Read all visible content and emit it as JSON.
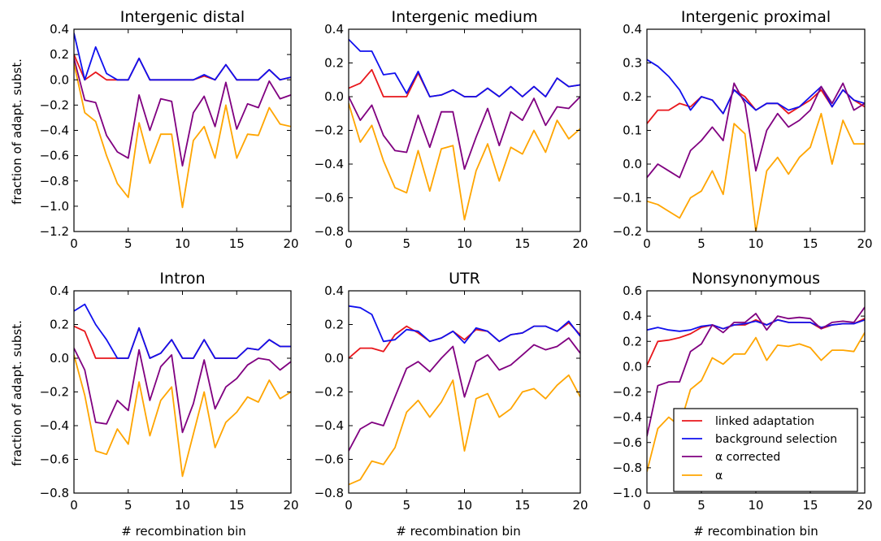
{
  "figure": {
    "ylabel": "fraction of adapt. subst.",
    "xlabel": "# recombination bin"
  },
  "legend": {
    "location": "lower-right of Nonsynonymous panel",
    "entries": [
      {
        "label": "linked adaptation",
        "color": "#e8161b"
      },
      {
        "label": "background selection",
        "color": "#1010ee"
      },
      {
        "label": "α corrected",
        "color": "#800080"
      },
      {
        "label": "α",
        "color": "#ffa500"
      }
    ]
  },
  "chart_data": [
    {
      "type": "line",
      "title": "Intergenic distal",
      "xlim": [
        0,
        20
      ],
      "ylim": [
        -1.2,
        0.4
      ],
      "xticks": [
        "0",
        "5",
        "10",
        "15",
        "20"
      ],
      "yticks": [
        "0.4",
        "0.2",
        "0.0",
        "−0.2",
        "−0.4",
        "−0.6",
        "−0.8",
        "−1.0",
        "−1.2"
      ],
      "x": [
        0,
        1,
        2,
        3,
        4,
        5,
        6,
        7,
        8,
        9,
        10,
        11,
        12,
        13,
        14,
        15,
        16,
        17,
        18,
        19,
        20
      ],
      "series": [
        {
          "name": "linked adaptation",
          "color": "#e8161b",
          "values": [
            0.2,
            0.0,
            0.06,
            0.0,
            0.0,
            0.0,
            0.17,
            0.0,
            0.0,
            0.0,
            0.0,
            0.0,
            0.03,
            0.0,
            0.12,
            0.0,
            0.0,
            0.0,
            0.08,
            0.0,
            0.02
          ]
        },
        {
          "name": "background selection",
          "color": "#1010ee",
          "values": [
            0.37,
            0.0,
            0.26,
            0.05,
            0.0,
            0.0,
            0.17,
            0.0,
            0.0,
            0.0,
            0.0,
            0.0,
            0.04,
            0.0,
            0.12,
            0.0,
            0.0,
            0.0,
            0.08,
            0.0,
            0.02
          ]
        },
        {
          "name": "α corrected",
          "color": "#800080",
          "values": [
            0.17,
            -0.16,
            -0.18,
            -0.44,
            -0.57,
            -0.62,
            -0.12,
            -0.4,
            -0.15,
            -0.17,
            -0.68,
            -0.26,
            -0.13,
            -0.37,
            -0.02,
            -0.39,
            -0.19,
            -0.22,
            -0.01,
            -0.15,
            -0.12
          ]
        },
        {
          "name": "α",
          "color": "#ffa500",
          "values": [
            0.13,
            -0.26,
            -0.33,
            -0.6,
            -0.82,
            -0.93,
            -0.34,
            -0.66,
            -0.43,
            -0.43,
            -1.01,
            -0.48,
            -0.37,
            -0.62,
            -0.2,
            -0.62,
            -0.43,
            -0.44,
            -0.22,
            -0.35,
            -0.37
          ]
        }
      ]
    },
    {
      "type": "line",
      "title": "Intergenic medium",
      "xlim": [
        0,
        20
      ],
      "ylim": [
        -0.8,
        0.4
      ],
      "xticks": [
        "0",
        "5",
        "10",
        "15",
        "20"
      ],
      "yticks": [
        "0.4",
        "0.2",
        "0.0",
        "−0.2",
        "−0.4",
        "−0.6",
        "−0.8"
      ],
      "x": [
        0,
        1,
        2,
        3,
        4,
        5,
        6,
        7,
        8,
        9,
        10,
        11,
        12,
        13,
        14,
        15,
        16,
        17,
        18,
        19,
        20
      ],
      "series": [
        {
          "name": "linked adaptation",
          "color": "#e8161b",
          "values": [
            0.05,
            0.08,
            0.16,
            0.0,
            0.0,
            0.0,
            0.14,
            0.0,
            0.01,
            0.04,
            0.0,
            0.0,
            0.05,
            0.0,
            0.06,
            0.0,
            0.06,
            0.0,
            0.11,
            0.06,
            0.07
          ]
        },
        {
          "name": "background selection",
          "color": "#1010ee",
          "values": [
            0.34,
            0.27,
            0.27,
            0.13,
            0.14,
            0.02,
            0.15,
            0.0,
            0.01,
            0.04,
            0.0,
            0.0,
            0.05,
            0.0,
            0.06,
            0.0,
            0.06,
            0.0,
            0.11,
            0.06,
            0.07
          ]
        },
        {
          "name": "α corrected",
          "color": "#800080",
          "values": [
            0.0,
            -0.14,
            -0.05,
            -0.23,
            -0.32,
            -0.33,
            -0.11,
            -0.3,
            -0.09,
            -0.09,
            -0.43,
            -0.24,
            -0.07,
            -0.29,
            -0.09,
            -0.14,
            -0.01,
            -0.17,
            -0.06,
            -0.07,
            0.0
          ]
        },
        {
          "name": "α",
          "color": "#ffa500",
          "values": [
            -0.04,
            -0.27,
            -0.17,
            -0.38,
            -0.54,
            -0.57,
            -0.32,
            -0.56,
            -0.31,
            -0.29,
            -0.73,
            -0.44,
            -0.28,
            -0.5,
            -0.3,
            -0.34,
            -0.2,
            -0.33,
            -0.14,
            -0.25,
            -0.19
          ]
        }
      ]
    },
    {
      "type": "line",
      "title": "Intergenic proximal",
      "xlim": [
        0,
        20
      ],
      "ylim": [
        -0.2,
        0.4
      ],
      "xticks": [
        "0",
        "5",
        "10",
        "15",
        "20"
      ],
      "yticks": [
        "0.4",
        "0.3",
        "0.2",
        "0.1",
        "0.0",
        "−0.1",
        "−0.2"
      ],
      "x": [
        0,
        1,
        2,
        3,
        4,
        5,
        6,
        7,
        8,
        9,
        10,
        11,
        12,
        13,
        14,
        15,
        16,
        17,
        18,
        19,
        20
      ],
      "series": [
        {
          "name": "linked adaptation",
          "color": "#e8161b",
          "values": [
            0.12,
            0.16,
            0.16,
            0.18,
            0.17,
            0.2,
            0.19,
            0.15,
            0.22,
            0.2,
            0.16,
            0.18,
            0.18,
            0.15,
            0.17,
            0.19,
            0.22,
            0.17,
            0.22,
            0.19,
            0.17
          ]
        },
        {
          "name": "background selection",
          "color": "#1010ee",
          "values": [
            0.31,
            0.29,
            0.26,
            0.22,
            0.16,
            0.2,
            0.19,
            0.15,
            0.22,
            0.19,
            0.16,
            0.18,
            0.18,
            0.16,
            0.17,
            0.2,
            0.23,
            0.17,
            0.22,
            0.19,
            0.18
          ]
        },
        {
          "name": "α corrected",
          "color": "#800080",
          "values": [
            -0.04,
            0.0,
            -0.02,
            -0.04,
            0.04,
            0.07,
            0.11,
            0.07,
            0.24,
            0.18,
            -0.02,
            0.1,
            0.15,
            0.11,
            0.13,
            0.16,
            0.23,
            0.18,
            0.24,
            0.16,
            0.18
          ]
        },
        {
          "name": "α",
          "color": "#ffa500",
          "values": [
            -0.11,
            -0.12,
            -0.14,
            -0.16,
            -0.1,
            -0.08,
            -0.02,
            -0.09,
            0.12,
            0.09,
            -0.2,
            -0.02,
            0.02,
            -0.03,
            0.02,
            0.05,
            0.15,
            0.0,
            0.13,
            0.06,
            0.06
          ]
        }
      ]
    },
    {
      "type": "line",
      "title": "Intron",
      "xlim": [
        0,
        20
      ],
      "ylim": [
        -0.8,
        0.4
      ],
      "xticks": [
        "0",
        "5",
        "10",
        "15",
        "20"
      ],
      "yticks": [
        "0.4",
        "0.2",
        "0.0",
        "−0.2",
        "−0.4",
        "−0.6",
        "−0.8"
      ],
      "x": [
        0,
        1,
        2,
        3,
        4,
        5,
        6,
        7,
        8,
        9,
        10,
        11,
        12,
        13,
        14,
        15,
        16,
        17,
        18,
        19,
        20
      ],
      "series": [
        {
          "name": "linked adaptation",
          "color": "#e8161b",
          "values": [
            0.19,
            0.16,
            0.0,
            0.0,
            0.0,
            0.0,
            0.18,
            0.0,
            0.03,
            0.11,
            0.0,
            0.0,
            0.11,
            0.0,
            0.0,
            0.0,
            0.06,
            0.05,
            0.11,
            0.07,
            0.07
          ]
        },
        {
          "name": "background selection",
          "color": "#1010ee",
          "values": [
            0.28,
            0.32,
            0.2,
            0.11,
            0.0,
            0.0,
            0.18,
            0.0,
            0.03,
            0.11,
            0.0,
            0.0,
            0.11,
            0.0,
            0.0,
            0.0,
            0.06,
            0.05,
            0.11,
            0.07,
            0.07
          ]
        },
        {
          "name": "α corrected",
          "color": "#800080",
          "values": [
            0.06,
            -0.07,
            -0.38,
            -0.39,
            -0.25,
            -0.31,
            0.05,
            -0.25,
            -0.05,
            0.02,
            -0.44,
            -0.27,
            -0.01,
            -0.3,
            -0.17,
            -0.12,
            -0.04,
            0.0,
            -0.01,
            -0.07,
            -0.02
          ]
        },
        {
          "name": "α",
          "color": "#ffa500",
          "values": [
            0.02,
            -0.22,
            -0.55,
            -0.57,
            -0.42,
            -0.51,
            -0.14,
            -0.46,
            -0.25,
            -0.17,
            -0.7,
            -0.45,
            -0.2,
            -0.53,
            -0.38,
            -0.32,
            -0.23,
            -0.26,
            -0.13,
            -0.24,
            -0.2
          ]
        }
      ]
    },
    {
      "type": "line",
      "title": "UTR",
      "xlim": [
        0,
        20
      ],
      "ylim": [
        -0.8,
        0.4
      ],
      "xticks": [
        "0",
        "5",
        "10",
        "15",
        "20"
      ],
      "yticks": [
        "0.4",
        "0.2",
        "0.0",
        "−0.2",
        "−0.4",
        "−0.6",
        "−0.8"
      ],
      "x": [
        0,
        1,
        2,
        3,
        4,
        5,
        6,
        7,
        8,
        9,
        10,
        11,
        12,
        13,
        14,
        15,
        16,
        17,
        18,
        19,
        20
      ],
      "series": [
        {
          "name": "linked adaptation",
          "color": "#e8161b",
          "values": [
            0.0,
            0.06,
            0.06,
            0.04,
            0.14,
            0.19,
            0.15,
            0.1,
            0.12,
            0.16,
            0.11,
            0.17,
            0.16,
            0.1,
            0.14,
            0.15,
            0.19,
            0.19,
            0.16,
            0.21,
            0.14
          ]
        },
        {
          "name": "background selection",
          "color": "#1010ee",
          "values": [
            0.31,
            0.3,
            0.26,
            0.1,
            0.11,
            0.17,
            0.16,
            0.1,
            0.12,
            0.16,
            0.09,
            0.18,
            0.16,
            0.1,
            0.14,
            0.15,
            0.19,
            0.19,
            0.16,
            0.22,
            0.13
          ]
        },
        {
          "name": "α corrected",
          "color": "#800080",
          "values": [
            -0.55,
            -0.42,
            -0.38,
            -0.4,
            -0.23,
            -0.06,
            -0.02,
            -0.08,
            0.0,
            0.07,
            -0.23,
            -0.02,
            0.02,
            -0.07,
            -0.04,
            0.02,
            0.08,
            0.05,
            0.07,
            0.12,
            0.03
          ]
        },
        {
          "name": "α",
          "color": "#ffa500",
          "values": [
            -0.75,
            -0.72,
            -0.61,
            -0.63,
            -0.53,
            -0.32,
            -0.25,
            -0.35,
            -0.26,
            -0.13,
            -0.55,
            -0.24,
            -0.21,
            -0.35,
            -0.3,
            -0.2,
            -0.18,
            -0.24,
            -0.16,
            -0.1,
            -0.23
          ]
        }
      ]
    },
    {
      "type": "line",
      "title": "Nonsynonymous",
      "xlim": [
        0,
        20
      ],
      "ylim": [
        -1.0,
        0.6
      ],
      "xticks": [
        "0",
        "5",
        "10",
        "15",
        "20"
      ],
      "yticks": [
        "0.6",
        "0.4",
        "0.2",
        "0.0",
        "−0.2",
        "−0.4",
        "−0.6",
        "−0.8",
        "−1.0"
      ],
      "x": [
        0,
        1,
        2,
        3,
        4,
        5,
        6,
        7,
        8,
        9,
        10,
        11,
        12,
        13,
        14,
        15,
        16,
        17,
        18,
        19,
        20
      ],
      "series": [
        {
          "name": "linked adaptation",
          "color": "#e8161b",
          "values": [
            0.01,
            0.2,
            0.21,
            0.23,
            0.26,
            0.31,
            0.33,
            0.3,
            0.33,
            0.33,
            0.37,
            0.33,
            0.37,
            0.35,
            0.35,
            0.35,
            0.3,
            0.33,
            0.34,
            0.34,
            0.38
          ]
        },
        {
          "name": "background selection",
          "color": "#1010ee",
          "values": [
            0.29,
            0.31,
            0.29,
            0.28,
            0.29,
            0.32,
            0.33,
            0.3,
            0.33,
            0.34,
            0.36,
            0.33,
            0.37,
            0.35,
            0.35,
            0.35,
            0.31,
            0.33,
            0.34,
            0.34,
            0.37
          ]
        },
        {
          "name": "α corrected",
          "color": "#800080",
          "values": [
            -0.55,
            -0.15,
            -0.12,
            -0.12,
            0.12,
            0.18,
            0.33,
            0.27,
            0.35,
            0.35,
            0.42,
            0.29,
            0.4,
            0.38,
            0.39,
            0.38,
            0.3,
            0.35,
            0.36,
            0.35,
            0.47
          ]
        },
        {
          "name": "α",
          "color": "#ffa500",
          "values": [
            -0.83,
            -0.49,
            -0.4,
            -0.47,
            -0.18,
            -0.11,
            0.07,
            0.02,
            0.1,
            0.1,
            0.23,
            0.05,
            0.17,
            0.16,
            0.18,
            0.15,
            0.05,
            0.13,
            0.13,
            0.12,
            0.27
          ]
        }
      ]
    }
  ]
}
